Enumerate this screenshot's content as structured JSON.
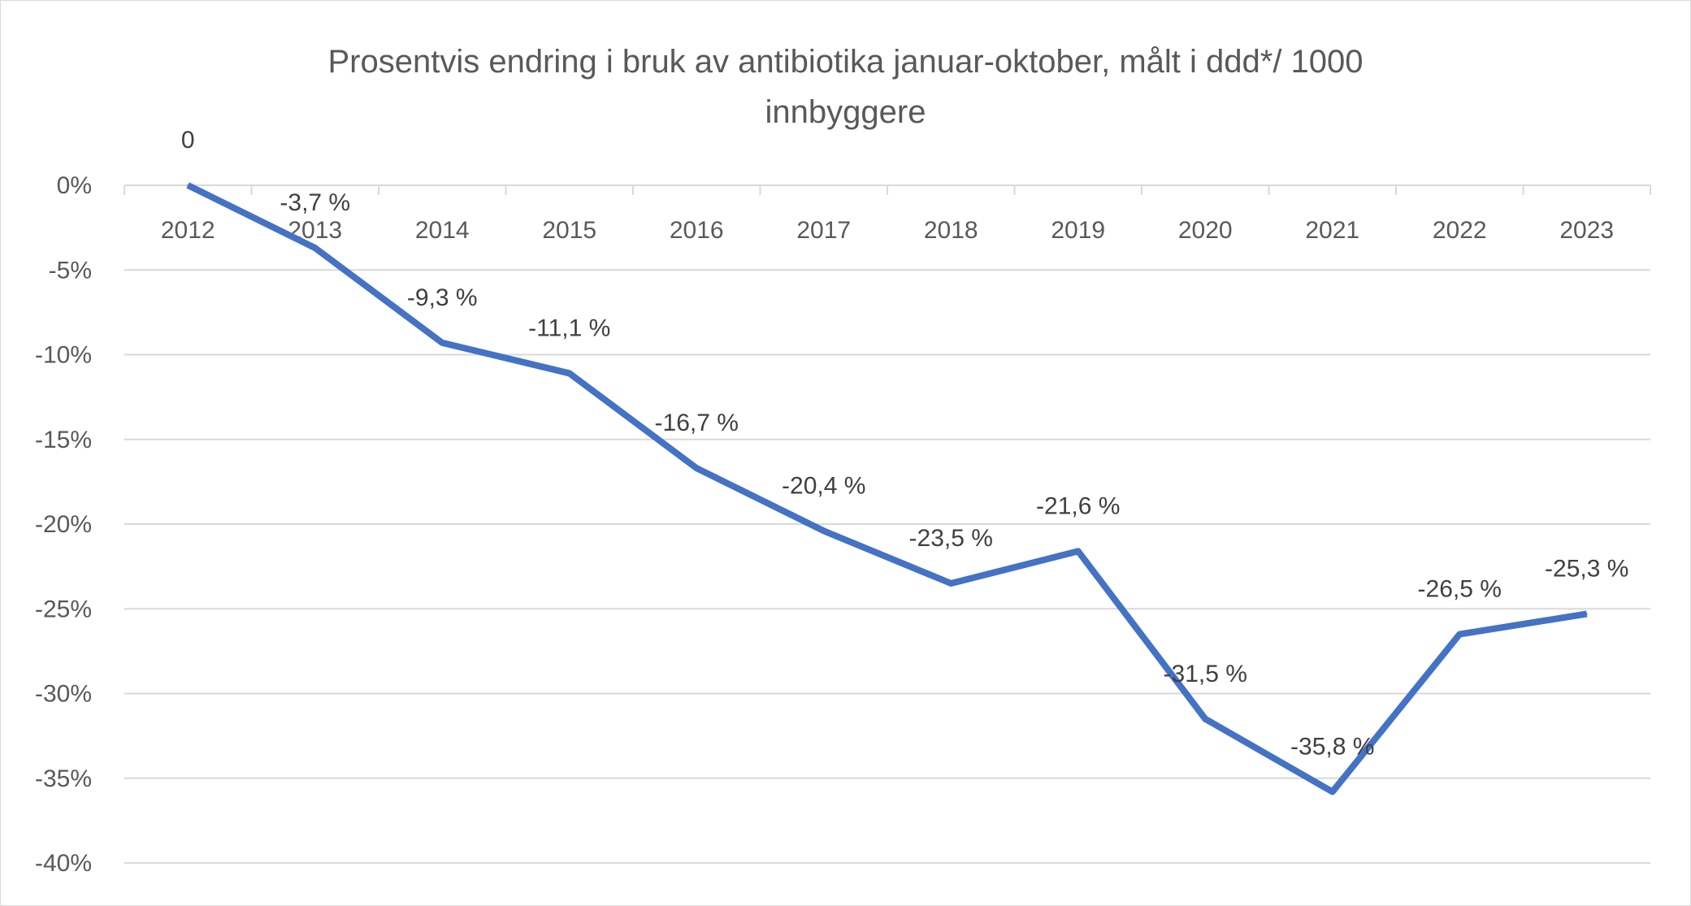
{
  "chart_data": {
    "type": "line",
    "title": [
      "Prosentvis endring i bruk av antibiotika januar-oktober, målt i ddd*/ 1000",
      "innbyggere"
    ],
    "categories": [
      "2012",
      "2013",
      "2014",
      "2015",
      "2016",
      "2017",
      "2018",
      "2019",
      "2020",
      "2021",
      "2022",
      "2023"
    ],
    "series": [
      {
        "values": [
          0,
          -3.7,
          -9.3,
          -11.1,
          -16.7,
          -20.4,
          -23.5,
          -21.6,
          -31.5,
          -35.8,
          -26.5,
          -25.3
        ],
        "data_labels": [
          "0",
          "-3,7 %",
          "-9,3 %",
          "-11,1 %",
          "-16,7 %",
          "-20,4 %",
          "-23,5 %",
          "-21,6 %",
          "-31,5 %",
          "-35,8 %",
          "-26,5 %",
          "-25,3 %"
        ],
        "color": "#4472c4"
      }
    ],
    "ylim": [
      -40,
      0
    ],
    "yticks": [
      0,
      -5,
      -10,
      -15,
      -20,
      -25,
      -30,
      -35,
      -40
    ],
    "ytick_labels": [
      "0%",
      "-5%",
      "-10%",
      "-15%",
      "-20%",
      "-25%",
      "-30%",
      "-35%",
      "-40%"
    ],
    "grid": true,
    "legend": "none",
    "xlabel": "",
    "ylabel": "",
    "gridline_color": "#d9d9d9"
  }
}
